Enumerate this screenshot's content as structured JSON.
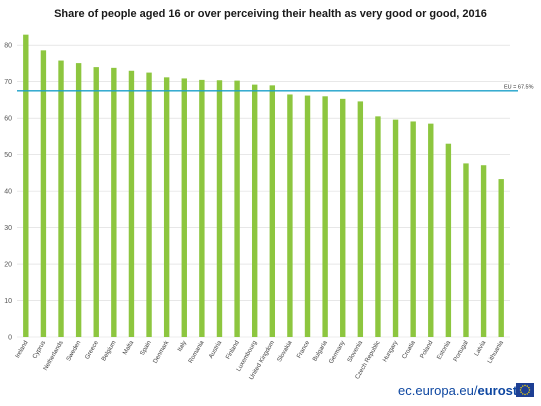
{
  "chart_data": {
    "type": "bar",
    "title": "Share of people aged 16 or over perceiving their health as very good or good, 2016",
    "xlabel": "",
    "ylabel": "",
    "ylim": [
      0,
      85
    ],
    "yticks": [
      0,
      10,
      20,
      30,
      40,
      50,
      60,
      70,
      80
    ],
    "grid": true,
    "categories": [
      "Ireland",
      "Cyprus",
      "Netherlands",
      "Sweden",
      "Greece",
      "Belgium",
      "Malta",
      "Spain",
      "Denmark",
      "Italy",
      "Romania",
      "Austria",
      "Finland",
      "Luxembourg",
      "United Kingdom",
      "Slovakia",
      "France",
      "Bulgaria",
      "Germany",
      "Slovenia",
      "Czech Republic",
      "Hungary",
      "Croatia",
      "Poland",
      "Estonia",
      "Portugal",
      "Latvia",
      "Lithuania"
    ],
    "values": [
      82.9,
      78.6,
      75.8,
      75.1,
      74.0,
      73.8,
      73.0,
      72.5,
      71.2,
      70.9,
      70.5,
      70.4,
      70.3,
      69.2,
      69.0,
      66.5,
      66.2,
      66.0,
      65.3,
      64.6,
      60.5,
      59.6,
      59.1,
      58.5,
      53.0,
      47.6,
      47.1,
      43.3
    ],
    "bar_color": "#8dc63f",
    "reference_line": {
      "label": "EU = 67.5%",
      "value": 67.5,
      "color": "#1ba0c9"
    }
  },
  "footer": {
    "site_text": "ec.europa.eu/",
    "brand_text": "eurostat",
    "text_color": "#0e47a1",
    "flag_color": "#1d3f94",
    "star_color": "#ffdd00"
  }
}
